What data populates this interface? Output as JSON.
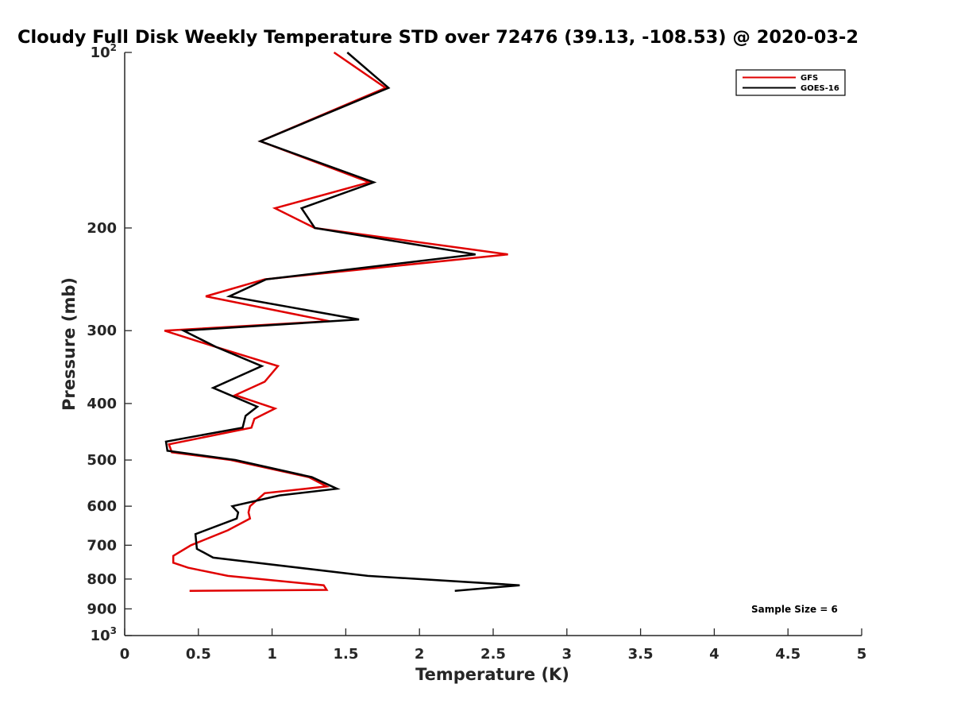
{
  "chart_data": {
    "type": "line",
    "title": "Cloudy Full Disk Weekly Temperature STD over 72476 (39.13, -108.53) @ 2020-03-2",
    "xlabel": "Temperature (K)",
    "ylabel": "Pressure (mb)",
    "xlim": [
      0,
      5
    ],
    "ylim": [
      100,
      1000
    ],
    "y_scale": "log",
    "y_reversed": true,
    "grid": false,
    "legend_position": "top-right",
    "x_ticks": [
      {
        "value": 0,
        "label": "0"
      },
      {
        "value": 0.5,
        "label": "0.5"
      },
      {
        "value": 1,
        "label": "1"
      },
      {
        "value": 1.5,
        "label": "1.5"
      },
      {
        "value": 2,
        "label": "2"
      },
      {
        "value": 2.5,
        "label": "2.5"
      },
      {
        "value": 3,
        "label": "3"
      },
      {
        "value": 3.5,
        "label": "3.5"
      },
      {
        "value": 4,
        "label": "4"
      },
      {
        "value": 4.5,
        "label": "4.5"
      },
      {
        "value": 5,
        "label": "5"
      }
    ],
    "y_ticks": [
      {
        "value": 100,
        "base": "10",
        "exp": "2"
      },
      {
        "value": 200,
        "base": "200",
        "exp": ""
      },
      {
        "value": 300,
        "base": "300",
        "exp": ""
      },
      {
        "value": 400,
        "base": "400",
        "exp": ""
      },
      {
        "value": 500,
        "base": "500",
        "exp": ""
      },
      {
        "value": 600,
        "base": "600",
        "exp": ""
      },
      {
        "value": 700,
        "base": "700",
        "exp": ""
      },
      {
        "value": 800,
        "base": "800",
        "exp": ""
      },
      {
        "value": 900,
        "base": "900",
        "exp": ""
      },
      {
        "value": 1000,
        "base": "10",
        "exp": "3"
      }
    ],
    "series": [
      {
        "name": "GFS",
        "color": "#e00000",
        "x": [
          1.42,
          1.77,
          0.92,
          1.66,
          1.02,
          1.29,
          2.6,
          0.95,
          0.55,
          1.39,
          0.27,
          0.62,
          1.04,
          0.95,
          0.75,
          1.02,
          0.88,
          0.86,
          0.3,
          0.32,
          0.72,
          1.25,
          1.37,
          0.95,
          0.85,
          0.84,
          0.85,
          0.7,
          0.45,
          0.33,
          0.33,
          0.43,
          0.7,
          1.35,
          1.37,
          0.44
        ],
        "y": [
          100,
          115,
          142,
          167,
          185,
          200,
          222,
          245,
          262,
          289,
          300,
          320,
          345,
          367,
          387,
          408,
          425,
          440,
          470,
          485,
          500,
          535,
          555,
          570,
          600,
          615,
          630,
          660,
          700,
          730,
          750,
          765,
          790,
          820,
          835,
          838
        ]
      },
      {
        "name": "GOES-16",
        "color": "#000000",
        "x": [
          1.51,
          1.79,
          0.92,
          1.69,
          1.2,
          1.29,
          2.38,
          0.96,
          0.71,
          1.59,
          0.4,
          0.62,
          0.93,
          0.6,
          0.9,
          0.82,
          0.8,
          0.28,
          0.29,
          0.75,
          1.27,
          1.44,
          1.05,
          0.73,
          0.77,
          0.76,
          0.48,
          0.49,
          0.6,
          1.65,
          2.68,
          2.24
        ],
        "y": [
          100,
          115,
          142,
          167,
          185,
          200,
          222,
          245,
          262,
          287,
          300,
          320,
          345,
          376,
          405,
          420,
          440,
          465,
          482,
          500,
          535,
          560,
          575,
          600,
          615,
          630,
          670,
          710,
          735,
          790,
          820,
          838
        ]
      }
    ],
    "annotation": "Sample Size = 6"
  }
}
